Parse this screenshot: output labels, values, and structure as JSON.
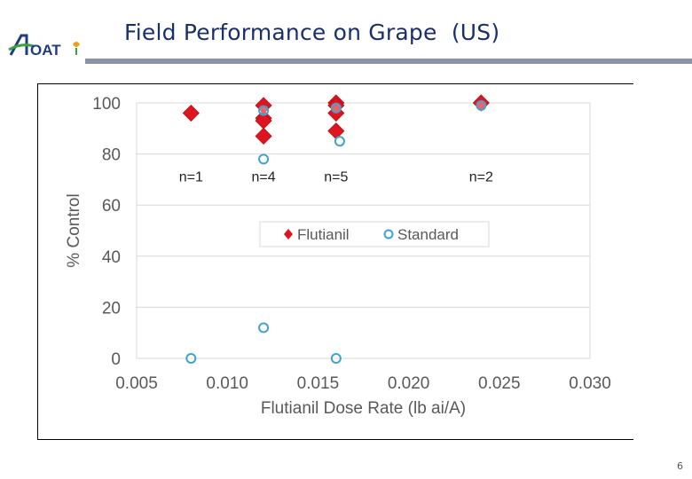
{
  "title": "Field Performance on Grape  (US)",
  "logo_text": "OAT",
  "page_number": "6",
  "chart_data": {
    "type": "scatter",
    "title": "",
    "xlabel": "Flutianil Dose Rate (lb ai/A)",
    "ylabel": "% Control",
    "xlim": [
      0.005,
      0.03
    ],
    "ylim": [
      0,
      100
    ],
    "xticks": [
      "0.005",
      "0.010",
      "0.015",
      "0.020",
      "0.025",
      "0.030"
    ],
    "xtick_values": [
      0.005,
      0.01,
      0.015,
      0.02,
      0.025,
      0.03
    ],
    "yticks": [
      "0",
      "20",
      "40",
      "60",
      "80",
      "100"
    ],
    "ytick_values": [
      0,
      20,
      40,
      60,
      80,
      100
    ],
    "grid": "horizontal",
    "legend_position": "center",
    "series": [
      {
        "name": "Flutianil",
        "color": "#e0141e",
        "marker": "diamond",
        "points": [
          {
            "x": 0.008,
            "y": 96
          },
          {
            "x": 0.012,
            "y": 99
          },
          {
            "x": 0.012,
            "y": 94
          },
          {
            "x": 0.012,
            "y": 93
          },
          {
            "x": 0.012,
            "y": 87
          },
          {
            "x": 0.016,
            "y": 100
          },
          {
            "x": 0.016,
            "y": 99
          },
          {
            "x": 0.016,
            "y": 96
          },
          {
            "x": 0.016,
            "y": 89
          },
          {
            "x": 0.024,
            "y": 100
          }
        ]
      },
      {
        "name": "Standard",
        "color": "#3fa2cf",
        "marker": "circle",
        "points": [
          {
            "x": 0.008,
            "y": 0
          },
          {
            "x": 0.012,
            "y": 97
          },
          {
            "x": 0.012,
            "y": 78
          },
          {
            "x": 0.012,
            "y": 12
          },
          {
            "x": 0.016,
            "y": 98
          },
          {
            "x": 0.0162,
            "y": 85
          },
          {
            "x": 0.016,
            "y": 0
          },
          {
            "x": 0.024,
            "y": 99
          }
        ]
      }
    ],
    "annotations": [
      {
        "text": "n=1",
        "x": 0.008,
        "y": 72
      },
      {
        "text": "n=4",
        "x": 0.012,
        "y": 72
      },
      {
        "text": "n=5",
        "x": 0.016,
        "y": 72
      },
      {
        "text": "n=2",
        "x": 0.024,
        "y": 72
      }
    ]
  }
}
